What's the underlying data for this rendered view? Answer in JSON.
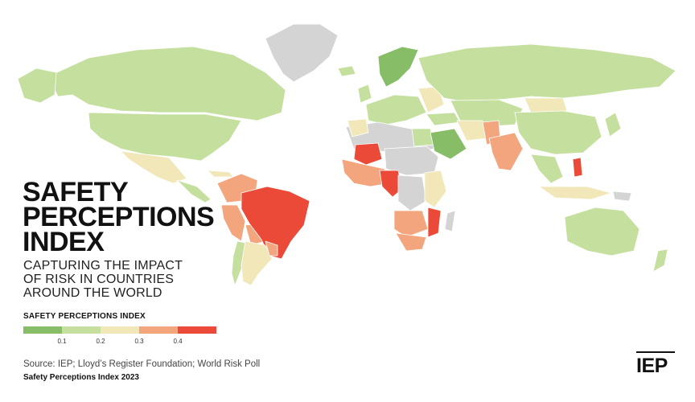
{
  "title": {
    "lines": [
      "SAFETY",
      "PERCEPTIONS",
      "INDEX"
    ]
  },
  "subtitle": {
    "lines": [
      "CAPTURING THE IMPACT",
      "OF RISK IN COUNTRIES",
      "AROUND THE WORLD"
    ]
  },
  "legend": {
    "title": "SAFETY PERCEPTIONS INDEX",
    "colors": [
      "#86bd66",
      "#c5df9e",
      "#f1e7b8",
      "#f3a57d",
      "#ea4a37"
    ],
    "ticks": [
      "0.1",
      "0.2",
      "0.3",
      "0.4"
    ]
  },
  "source": "Source: IEP; Lloyd’s Register Foundation; World Risk Poll",
  "note": "Safety Perceptions Index 2023",
  "logo": "IEP",
  "map": {
    "no_data_color": "#d4d4d4",
    "border_color": "#ffffff"
  }
}
